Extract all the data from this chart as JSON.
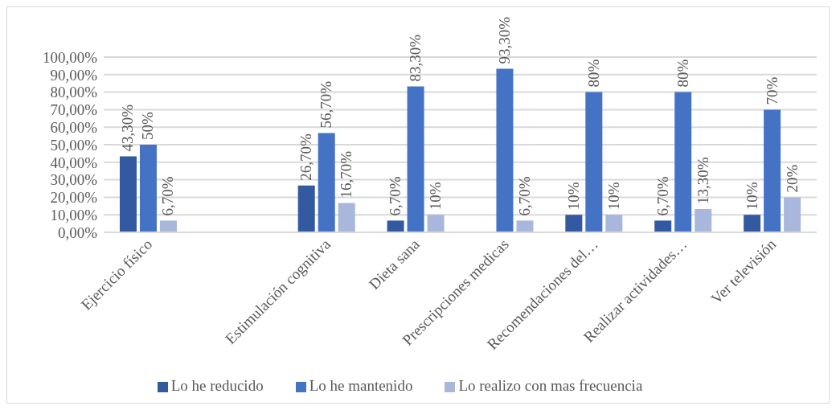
{
  "chart_data": {
    "type": "bar",
    "categories": [
      "Ejercicio físico",
      null,
      "Estimulación cognitiva",
      "Dieta sana",
      "Prescripciones medicas",
      "Recomendaciones del…",
      "Realizar actividades…",
      "Ver televisión"
    ],
    "series": [
      {
        "name": "Lo he reducido",
        "color": "#335aa1",
        "values": [
          43.3,
          null,
          26.7,
          6.7,
          null,
          10,
          6.7,
          10
        ],
        "value_labels": [
          "43,30%",
          null,
          "26,70%",
          "6,70%",
          null,
          "10%",
          "6,70%",
          "10%"
        ]
      },
      {
        "name": "Lo he mantenido",
        "color": "#4472c4",
        "values": [
          50,
          null,
          56.7,
          83.3,
          93.3,
          80,
          80,
          70
        ],
        "value_labels": [
          "50%",
          null,
          "56,70%",
          "83,30%",
          "93,30%",
          "80%",
          "80%",
          "70%"
        ]
      },
      {
        "name": "Lo realizo con mas frecuencia",
        "color": "#a9b7dc",
        "values": [
          6.7,
          null,
          16.7,
          10,
          6.7,
          10,
          13.3,
          20
        ],
        "value_labels": [
          "6,70%",
          null,
          "16,70%",
          "10%",
          "6,70%",
          "10%",
          "13,30%",
          "20%"
        ]
      }
    ],
    "ylim": [
      0,
      100
    ],
    "yticks": [
      {
        "value": 0,
        "label": "0,00%"
      },
      {
        "value": 10,
        "label": "10,00%"
      },
      {
        "value": 20,
        "label": "20,00%"
      },
      {
        "value": 30,
        "label": "30,00%"
      },
      {
        "value": 40,
        "label": "40,00%"
      },
      {
        "value": 50,
        "label": "50,00%"
      },
      {
        "value": 60,
        "label": "60,00%"
      },
      {
        "value": 70,
        "label": "70,00%"
      },
      {
        "value": 80,
        "label": "80,00%"
      },
      {
        "value": 90,
        "label": "90,00%"
      },
      {
        "value": 100,
        "label": "100,00%"
      }
    ],
    "grid": "y",
    "legend": "bottom"
  }
}
